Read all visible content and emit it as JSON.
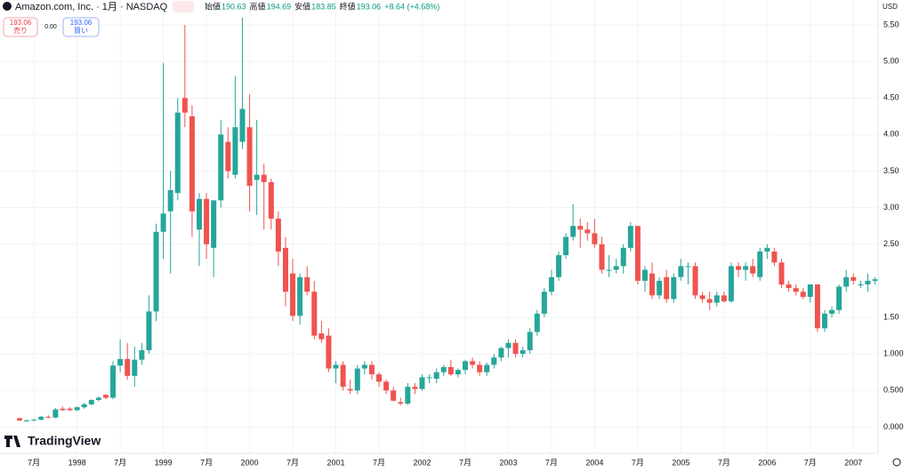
{
  "header": {
    "symbol": "Amazon.com, Inc. · 1月 · NASDAQ",
    "ohlc": [
      {
        "label": "始値",
        "value": "190.63"
      },
      {
        "label": "高値",
        "value": "194.69"
      },
      {
        "label": "安値",
        "value": "183.85"
      },
      {
        "label": "終値",
        "value": "193.06"
      }
    ],
    "change": "+8.64 (+4.68%)",
    "sell_price": "193.06",
    "sell_label": "売り",
    "spread": "0.00",
    "buy_price": "193.06",
    "buy_label": "買い",
    "currency": "USD",
    "logo": "TradingView"
  },
  "chart_data": {
    "type": "candlestick",
    "up_color": "#26a69a",
    "down_color": "#ef5350",
    "grid": true,
    "categories": [
      null,
      null,
      "7月",
      null,
      null,
      null,
      null,
      null,
      "1998",
      null,
      null,
      null,
      null,
      null,
      "7月",
      null,
      null,
      null,
      null,
      null,
      "1999",
      null,
      null,
      null,
      null,
      null,
      "7月",
      null,
      null,
      null,
      null,
      null,
      "2000",
      null,
      null,
      null,
      null,
      null,
      "7月",
      null,
      null,
      null,
      null,
      null,
      "2001",
      null,
      null,
      null,
      null,
      null,
      "7月",
      null,
      null,
      null,
      null,
      null,
      "2002",
      null,
      null,
      null,
      null,
      null,
      "7月",
      null,
      null,
      null,
      null,
      null,
      "2003",
      null,
      null,
      null,
      null,
      null,
      "7月",
      null,
      null,
      null,
      null,
      null,
      "2004",
      null,
      null,
      null,
      null,
      null,
      "7月",
      null,
      null,
      null,
      null,
      null,
      "2005",
      null,
      null,
      null,
      null,
      null,
      "7月",
      null,
      null,
      null,
      null,
      null,
      "2006",
      null,
      null,
      null,
      null,
      null,
      "7月",
      null,
      null,
      null,
      null,
      null,
      "2007",
      null,
      null,
      null
    ],
    "open": [
      0.12,
      0.08,
      0.09,
      0.1,
      0.14,
      0.13,
      0.25,
      0.25,
      0.23,
      0.27,
      0.31,
      0.37,
      0.44,
      0.4,
      0.84,
      0.93,
      0.7,
      0.92,
      1.05,
      1.58,
      2.67,
      2.95,
      3.2,
      4.5,
      4.25,
      2.7,
      3.12,
      2.45,
      3.1,
      3.9,
      3.45,
      3.9,
      4.1,
      3.38,
      3.45,
      3.35,
      2.85,
      2.45,
      2.1,
      1.52,
      2.05,
      1.85,
      1.28,
      1.25,
      0.8,
      0.85,
      0.52,
      0.5,
      0.8,
      0.85,
      0.72,
      0.62,
      0.5,
      0.34,
      0.32,
      0.55,
      0.52,
      0.68,
      0.66,
      0.75,
      0.82,
      0.72,
      0.78,
      0.9,
      0.85,
      0.75,
      0.85,
      0.95,
      1.08,
      1.15,
      1.0,
      1.05,
      1.3,
      1.55,
      1.85,
      2.05,
      2.35,
      2.6,
      2.75,
      2.7,
      2.65,
      2.5,
      2.15,
      2.15,
      2.2,
      2.45,
      2.75,
      2.0,
      2.1,
      1.8,
      2.05,
      1.75,
      2.05,
      2.2,
      2.2,
      1.8,
      1.75,
      1.7,
      1.8,
      1.72,
      2.2,
      2.15,
      2.2,
      2.05,
      2.4,
      2.4,
      2.25,
      1.95,
      1.9,
      1.85,
      1.78,
      1.95,
      1.35,
      1.55,
      1.6,
      1.92,
      2.05,
      1.95,
      1.95,
      2.0
    ],
    "high": [
      0.13,
      0.1,
      0.11,
      0.15,
      0.16,
      0.26,
      0.28,
      0.27,
      0.28,
      0.33,
      0.38,
      0.42,
      0.45,
      0.9,
      1.2,
      1.15,
      1.1,
      1.15,
      1.8,
      2.78,
      4.98,
      3.5,
      4.5,
      5.5,
      4.4,
      3.2,
      3.2,
      3.1,
      4.2,
      4.1,
      4.8,
      5.6,
      4.55,
      4.2,
      3.6,
      3.4,
      2.95,
      2.6,
      2.3,
      2.1,
      2.2,
      2.0,
      1.45,
      1.35,
      0.9,
      0.9,
      0.65,
      0.85,
      0.9,
      0.9,
      0.75,
      0.65,
      0.55,
      0.4,
      0.6,
      0.6,
      0.72,
      0.72,
      0.8,
      0.85,
      0.92,
      0.8,
      0.92,
      0.95,
      0.9,
      0.88,
      1.0,
      1.1,
      1.2,
      1.2,
      1.1,
      1.35,
      1.6,
      1.9,
      2.15,
      2.4,
      2.65,
      3.05,
      2.85,
      2.8,
      2.85,
      2.6,
      2.35,
      2.3,
      2.5,
      2.8,
      2.75,
      2.2,
      2.25,
      2.05,
      2.15,
      2.1,
      2.3,
      2.25,
      2.25,
      1.85,
      1.85,
      1.85,
      1.85,
      2.25,
      2.25,
      2.25,
      2.3,
      2.45,
      2.5,
      2.45,
      2.3,
      2.0,
      1.95,
      1.9,
      1.95,
      1.95,
      1.6,
      1.65,
      1.95,
      2.15,
      2.1,
      2.0,
      2.1,
      2.05
    ],
    "low": [
      0.08,
      0.07,
      0.08,
      0.09,
      0.12,
      0.12,
      0.22,
      0.22,
      0.22,
      0.25,
      0.3,
      0.35,
      0.38,
      0.38,
      0.75,
      0.65,
      0.55,
      0.85,
      1.0,
      1.45,
      2.3,
      2.1,
      3.1,
      4.1,
      2.6,
      2.2,
      2.3,
      2.05,
      3.0,
      3.4,
      3.4,
      3.8,
      2.95,
      2.9,
      2.7,
      2.7,
      2.2,
      1.65,
      1.45,
      1.4,
      1.8,
      1.2,
      1.15,
      0.75,
      0.6,
      0.5,
      0.45,
      0.45,
      0.72,
      0.65,
      0.55,
      0.45,
      0.35,
      0.3,
      0.3,
      0.45,
      0.5,
      0.6,
      0.6,
      0.7,
      0.7,
      0.68,
      0.72,
      0.8,
      0.7,
      0.7,
      0.8,
      0.9,
      0.95,
      0.95,
      0.95,
      1.0,
      1.25,
      1.5,
      1.8,
      2.0,
      2.3,
      2.55,
      2.45,
      2.55,
      2.45,
      2.1,
      2.05,
      2.1,
      2.1,
      2.4,
      1.95,
      1.85,
      1.75,
      1.75,
      1.7,
      1.7,
      2.0,
      1.95,
      1.75,
      1.7,
      1.6,
      1.65,
      1.7,
      1.7,
      2.05,
      2.0,
      2.05,
      2.0,
      2.3,
      2.2,
      1.9,
      1.85,
      1.8,
      1.75,
      1.7,
      1.3,
      1.3,
      1.5,
      1.55,
      1.85,
      1.95,
      1.9,
      1.85,
      1.95
    ],
    "close": [
      0.09,
      0.09,
      0.1,
      0.14,
      0.13,
      0.24,
      0.23,
      0.23,
      0.27,
      0.31,
      0.37,
      0.4,
      0.4,
      0.84,
      0.93,
      0.7,
      0.92,
      1.05,
      1.58,
      2.67,
      2.92,
      3.24,
      4.3,
      4.3,
      2.95,
      3.12,
      2.5,
      3.1,
      4.0,
      3.5,
      4.1,
      4.35,
      3.3,
      3.45,
      3.35,
      2.85,
      2.4,
      1.85,
      1.52,
      2.05,
      1.85,
      1.25,
      1.2,
      0.8,
      0.85,
      0.55,
      0.5,
      0.8,
      0.85,
      0.72,
      0.62,
      0.5,
      0.36,
      0.32,
      0.55,
      0.52,
      0.68,
      0.68,
      0.75,
      0.82,
      0.72,
      0.78,
      0.9,
      0.85,
      0.75,
      0.85,
      0.95,
      1.08,
      1.15,
      1.0,
      1.05,
      1.3,
      1.55,
      1.85,
      2.05,
      2.35,
      2.6,
      2.75,
      2.7,
      2.65,
      2.5,
      2.15,
      2.15,
      2.2,
      2.45,
      2.75,
      2.0,
      2.15,
      1.8,
      2.0,
      1.75,
      2.05,
      2.2,
      2.2,
      1.8,
      1.75,
      1.7,
      1.8,
      1.72,
      2.2,
      2.15,
      2.2,
      2.1,
      2.4,
      2.45,
      2.25,
      1.95,
      1.9,
      1.85,
      1.78,
      1.95,
      1.35,
      1.55,
      1.6,
      1.92,
      2.05,
      2.0,
      1.95,
      2.0,
      2.02
    ],
    "ylim": [
      -0.36,
      5.84
    ],
    "yticks": [
      {
        "value": 0,
        "label": "0.000"
      },
      {
        "value": 0.5,
        "label": "0.500"
      },
      {
        "value": 1,
        "label": "1.000"
      },
      {
        "value": 1.5,
        "label": "1.50"
      },
      {
        "value": 2.5,
        "label": "2.50"
      },
      {
        "value": 3,
        "label": "3.00"
      },
      {
        "value": 3.5,
        "label": "3.50"
      },
      {
        "value": 4,
        "label": "4.00"
      },
      {
        "value": 4.5,
        "label": "4.50"
      },
      {
        "value": 5,
        "label": "5.00"
      },
      {
        "value": 5.5,
        "label": "5.50"
      }
    ]
  }
}
